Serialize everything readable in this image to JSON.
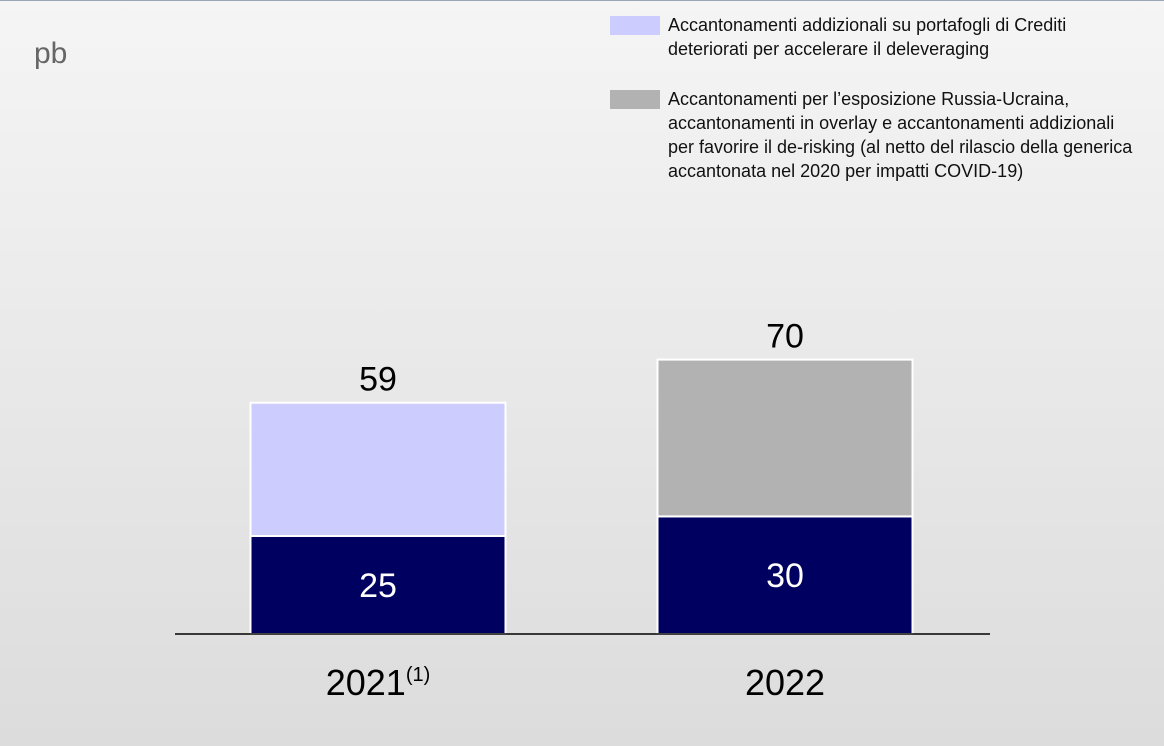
{
  "chart_data": {
    "type": "stacked_bar",
    "unit_label": "pb",
    "categories": [
      "2021",
      "2022"
    ],
    "category_notes": [
      "(1)",
      null
    ],
    "series": [
      {
        "color": "#000060",
        "values": [
          25,
          30
        ]
      },
      {
        "name": "Accantonamenti addizionali su portafogli di Crediti deteriorati per accelerare il deleveraging",
        "color": "#ccccff",
        "values": [
          34,
          null
        ]
      },
      {
        "name": "Accantonamenti per l’esposizione Russia-Ucraina, accantonamenti in overlay e accantonamenti addizionali per favorire il de-risking (al netto del rilascio della generica accantonata nel 2020 per impatti COVID-19)",
        "color": "#b2b2b2",
        "values": [
          null,
          40
        ]
      }
    ],
    "totals": [
      59,
      70
    ],
    "ylim": [
      0,
      80
    ]
  }
}
